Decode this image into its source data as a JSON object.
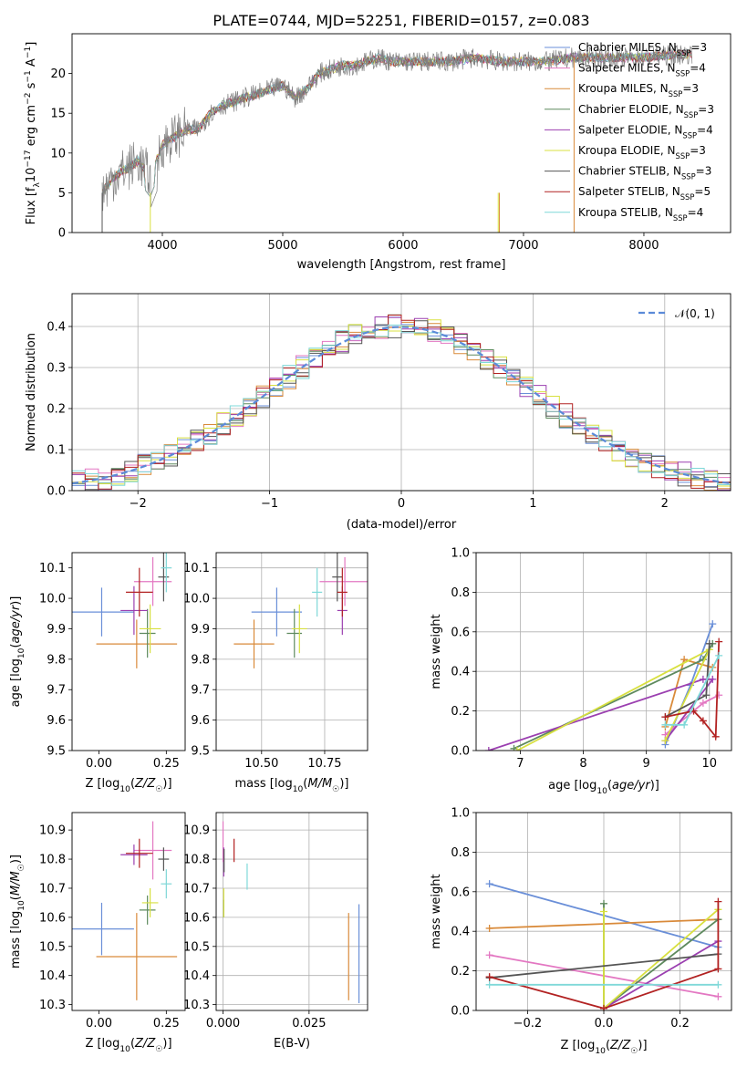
{
  "chart_data": [
    {
      "type": "line",
      "title": "PLATE=0744, MJD=52251, FIBERID=0157, z=0.083",
      "xlabel": "wavelength [Angstrom, rest frame]",
      "ylabel": "Flux [f_λ10^-17 erg cm^-2 s^-1 A^-1]",
      "xlim": [
        3250,
        8720
      ],
      "ylim": [
        0,
        25
      ],
      "xticks": [
        4000,
        5000,
        6000,
        7000,
        8000
      ],
      "yticks": [
        0,
        5,
        10,
        15,
        20
      ],
      "legend_position": "right",
      "spectrum": {
        "x": [
          3500,
          3600,
          3700,
          3800,
          3900,
          4000,
          4100,
          4200,
          4300,
          4400,
          4500,
          4600,
          4700,
          4800,
          4900,
          5000,
          5100,
          5200,
          5300,
          5400,
          5500,
          5600,
          5700,
          5800,
          5900,
          6000,
          6200,
          6400,
          6600,
          6800,
          7000,
          7200,
          7400,
          7600,
          7800,
          8000,
          8200,
          8400
        ],
        "y": [
          5,
          7,
          8,
          9,
          7,
          11,
          12,
          13,
          13,
          15,
          16,
          16.5,
          17,
          17.5,
          18,
          18.5,
          17,
          18,
          20,
          20.5,
          21,
          21,
          21.5,
          22,
          21.5,
          21.5,
          21.5,
          21.5,
          22,
          21.5,
          21.5,
          21.5,
          22,
          22,
          22,
          22,
          22.3,
          22.5
        ]
      },
      "series": [
        {
          "name": "Chabrier MILES, N_SSP=3",
          "color": "#6a8fd8"
        },
        {
          "name": "Salpeter MILES, N_SSP=4",
          "color": "#e377c2"
        },
        {
          "name": "Kroupa MILES, N_SSP=3",
          "color": "#d98a3a"
        },
        {
          "name": "Chabrier ELODIE, N_SSP=3",
          "color": "#5e8a5e"
        },
        {
          "name": "Salpeter ELODIE, N_SSP=4",
          "color": "#9b3fb0"
        },
        {
          "name": "Kroupa ELODIE, N_SSP=3",
          "color": "#d8e040"
        },
        {
          "name": "Chabrier STELIB, N_SSP=3",
          "color": "#555555"
        },
        {
          "name": "Salpeter STELIB, N_SSP=5",
          "color": "#b22222"
        },
        {
          "name": "Kroupa STELIB, N_SSP=4",
          "color": "#7fd8d8"
        }
      ]
    },
    {
      "type": "line",
      "title": "",
      "xlabel": "(data-model)/error",
      "ylabel": "Normed distribution",
      "xlim": [
        -2.5,
        2.5
      ],
      "ylim": [
        0,
        0.48
      ],
      "xticks": [
        -2,
        -1,
        0,
        1,
        2
      ],
      "yticks": [
        0.0,
        0.1,
        0.2,
        0.3,
        0.4
      ],
      "grid": true,
      "legend_position": "top-right",
      "legend": [
        "𝒩(0, 1)"
      ]
    },
    {
      "type": "scatter",
      "xlabel": "Z [log10(Z/Z☉)]",
      "ylabel": "age  [log10(age/yr)]",
      "xlim": [
        -0.1,
        0.32
      ],
      "ylim": [
        9.5,
        10.15
      ],
      "xticks": [
        0.0,
        0.25
      ],
      "yticks": [
        9.5,
        9.6,
        9.7,
        9.8,
        9.9,
        10.0,
        10.1
      ],
      "points": [
        {
          "x": 0.01,
          "y": 9.955,
          "xerr": 0.12,
          "yerr": 0.08,
          "c": "#6a8fd8"
        },
        {
          "x": 0.2,
          "y": 10.055,
          "xerr": 0.07,
          "yerr": 0.08,
          "c": "#e377c2"
        },
        {
          "x": 0.14,
          "y": 9.85,
          "xerr": 0.15,
          "yerr": 0.08,
          "c": "#d98a3a"
        },
        {
          "x": 0.18,
          "y": 9.885,
          "xerr": 0.03,
          "yerr": 0.08,
          "c": "#5e8a5e"
        },
        {
          "x": 0.13,
          "y": 9.96,
          "xerr": 0.05,
          "yerr": 0.08,
          "c": "#9b3fb0"
        },
        {
          "x": 0.19,
          "y": 9.9,
          "xerr": 0.04,
          "yerr": 0.08,
          "c": "#d8e040"
        },
        {
          "x": 0.24,
          "y": 10.07,
          "xerr": 0.02,
          "yerr": 0.08,
          "c": "#555555"
        },
        {
          "x": 0.15,
          "y": 10.02,
          "xerr": 0.05,
          "yerr": 0.08,
          "c": "#b22222"
        },
        {
          "x": 0.25,
          "y": 10.1,
          "xerr": 0.02,
          "yerr": 0.08,
          "c": "#7fd8d8"
        }
      ]
    },
    {
      "type": "scatter",
      "xlabel": "mass [log10(M/M☉)]",
      "ylabel": "",
      "xlim": [
        10.32,
        10.92
      ],
      "ylim": [
        9.5,
        10.15
      ],
      "xticks": [
        10.5,
        10.75
      ],
      "yticks": [
        9.5,
        9.6,
        9.7,
        9.8,
        9.9,
        10.0,
        10.1
      ],
      "points": [
        {
          "x": 10.56,
          "y": 9.955,
          "xerr": 0.1,
          "yerr": 0.08,
          "c": "#6a8fd8"
        },
        {
          "x": 10.83,
          "y": 10.055,
          "xerr": 0.1,
          "yerr": 0.08,
          "c": "#e377c2"
        },
        {
          "x": 10.47,
          "y": 9.85,
          "xerr": 0.08,
          "yerr": 0.08,
          "c": "#d98a3a"
        },
        {
          "x": 10.63,
          "y": 9.885,
          "xerr": 0.03,
          "yerr": 0.08,
          "c": "#5e8a5e"
        },
        {
          "x": 10.82,
          "y": 9.96,
          "xerr": 0.02,
          "yerr": 0.08,
          "c": "#9b3fb0"
        },
        {
          "x": 10.65,
          "y": 9.9,
          "xerr": 0.03,
          "yerr": 0.08,
          "c": "#d8e040"
        },
        {
          "x": 10.8,
          "y": 10.07,
          "xerr": 0.02,
          "yerr": 0.08,
          "c": "#555555"
        },
        {
          "x": 10.82,
          "y": 10.02,
          "xerr": 0.02,
          "yerr": 0.08,
          "c": "#b22222"
        },
        {
          "x": 10.72,
          "y": 10.02,
          "xerr": 0.02,
          "yerr": 0.08,
          "c": "#7fd8d8"
        }
      ]
    },
    {
      "type": "line",
      "xlabel": "age  [log10(age/yr)]",
      "ylabel": "mass weight",
      "xlim": [
        6.3,
        10.35
      ],
      "ylim": [
        0,
        1.0
      ],
      "xticks": [
        7,
        8,
        9,
        10
      ],
      "yticks": [
        0.0,
        0.2,
        0.4,
        0.6,
        0.8,
        1.0
      ],
      "grid": true,
      "series": [
        {
          "c": "#6a8fd8",
          "x": [
            9.3,
            9.7,
            10.05
          ],
          "y": [
            0.03,
            0.33,
            0.64
          ]
        },
        {
          "c": "#e377c2",
          "x": [
            9.3,
            9.9,
            10.15
          ],
          "y": [
            0.08,
            0.24,
            0.28
          ]
        },
        {
          "c": "#d98a3a",
          "x": [
            9.3,
            9.6,
            10.05
          ],
          "y": [
            0.12,
            0.46,
            0.42
          ]
        },
        {
          "c": "#5e8a5e",
          "x": [
            6.9,
            9.9,
            10.05
          ],
          "y": [
            0.01,
            0.46,
            0.54
          ]
        },
        {
          "c": "#9b3fb0",
          "x": [
            6.5,
            9.9,
            10.05,
            9.3
          ],
          "y": [
            0.0,
            0.36,
            0.36,
            0.05
          ]
        },
        {
          "c": "#d8e040",
          "x": [
            6.95,
            10.0,
            9.3
          ],
          "y": [
            0.0,
            0.51,
            0.05
          ]
        },
        {
          "c": "#555555",
          "x": [
            9.3,
            9.95,
            10.0
          ],
          "y": [
            0.17,
            0.28,
            0.54
          ]
        },
        {
          "c": "#b22222",
          "x": [
            9.3,
            9.75,
            9.9,
            10.1,
            10.15
          ],
          "y": [
            0.17,
            0.2,
            0.15,
            0.07,
            0.55
          ]
        },
        {
          "c": "#7fd8d8",
          "x": [
            9.3,
            9.6,
            10.15
          ],
          "y": [
            0.13,
            0.13,
            0.48
          ]
        }
      ]
    },
    {
      "type": "scatter",
      "xlabel": "Z [log10(Z/Z☉)]",
      "ylabel": "mass [log10(M/M☉)]",
      "xlim": [
        -0.1,
        0.32
      ],
      "ylim": [
        10.28,
        10.96
      ],
      "xticks": [
        0.0,
        0.25
      ],
      "yticks": [
        10.3,
        10.4,
        10.5,
        10.6,
        10.7,
        10.8,
        10.9
      ],
      "points": [
        {
          "x": 0.01,
          "y": 10.56,
          "xerr": 0.12,
          "yerr": 0.09,
          "c": "#6a8fd8"
        },
        {
          "x": 0.2,
          "y": 10.83,
          "xerr": 0.07,
          "yerr": 0.1,
          "c": "#e377c2"
        },
        {
          "x": 0.14,
          "y": 10.465,
          "xerr": 0.15,
          "yerr": 0.15,
          "c": "#d98a3a"
        },
        {
          "x": 0.18,
          "y": 10.625,
          "xerr": 0.03,
          "yerr": 0.05,
          "c": "#5e8a5e"
        },
        {
          "x": 0.13,
          "y": 10.815,
          "xerr": 0.05,
          "yerr": 0.035,
          "c": "#9b3fb0"
        },
        {
          "x": 0.19,
          "y": 10.65,
          "xerr": 0.03,
          "yerr": 0.05,
          "c": "#d8e040"
        },
        {
          "x": 0.24,
          "y": 10.8,
          "xerr": 0.02,
          "yerr": 0.04,
          "c": "#555555"
        },
        {
          "x": 0.15,
          "y": 10.82,
          "xerr": 0.05,
          "yerr": 0.05,
          "c": "#b22222"
        },
        {
          "x": 0.25,
          "y": 10.715,
          "xerr": 0.02,
          "yerr": 0.05,
          "c": "#7fd8d8"
        }
      ]
    },
    {
      "type": "scatter",
      "xlabel": "E(B-V)",
      "ylabel": "",
      "xlim": [
        -0.002,
        0.042
      ],
      "ylim": [
        10.28,
        10.96
      ],
      "xticks": [
        0.0,
        0.025
      ],
      "yticks": [
        10.3,
        10.4,
        10.5,
        10.6,
        10.7,
        10.8,
        10.9
      ],
      "points": [
        {
          "x": 0.0395,
          "y": 10.475,
          "yerr": 0.17,
          "c": "#6a8fd8"
        },
        {
          "x": 0.0,
          "y": 10.86,
          "yerr": 0.07,
          "c": "#e377c2"
        },
        {
          "x": 0.0365,
          "y": 10.465,
          "yerr": 0.15,
          "c": "#d98a3a"
        },
        {
          "x": 0.0002,
          "y": 10.63,
          "yerr": 0.03,
          "c": "#5e8a5e"
        },
        {
          "x": 0.0002,
          "y": 10.79,
          "yerr": 0.05,
          "c": "#9b3fb0"
        },
        {
          "x": 0.0002,
          "y": 10.65,
          "yerr": 0.05,
          "c": "#d8e040"
        },
        {
          "x": 0.0003,
          "y": 10.795,
          "yerr": 0.04,
          "c": "#555555"
        },
        {
          "x": 0.0032,
          "y": 10.83,
          "yerr": 0.04,
          "c": "#b22222"
        },
        {
          "x": 0.007,
          "y": 10.74,
          "yerr": 0.045,
          "c": "#7fd8d8"
        }
      ]
    },
    {
      "type": "line",
      "xlabel": "Z [log10(Z/Z☉)]",
      "ylabel": "mass weight",
      "xlim": [
        -0.335,
        0.335
      ],
      "ylim": [
        0,
        1.0
      ],
      "xticks": [
        -0.2,
        0.0,
        0.2
      ],
      "yticks": [
        0.0,
        0.2,
        0.4,
        0.6,
        0.8,
        1.0
      ],
      "grid": true,
      "series": [
        {
          "c": "#6a8fd8",
          "x": [
            -0.3,
            0.3
          ],
          "y": [
            0.64,
            0.32
          ]
        },
        {
          "c": "#e377c2",
          "x": [
            -0.3,
            0.3
          ],
          "y": [
            0.28,
            0.07
          ]
        },
        {
          "c": "#d98a3a",
          "x": [
            -0.3,
            0.3
          ],
          "y": [
            0.415,
            0.46
          ]
        },
        {
          "c": "#5e8a5e",
          "x": [
            0.0,
            0.0,
            0.3
          ],
          "y": [
            0.54,
            0.01,
            0.46
          ]
        },
        {
          "c": "#9b3fb0",
          "x": [
            0.0,
            0.3
          ],
          "y": [
            0.01,
            0.35
          ]
        },
        {
          "c": "#d8e040",
          "x": [
            0.0,
            0.0,
            0.3
          ],
          "y": [
            0.5,
            0.01,
            0.51
          ]
        },
        {
          "c": "#555555",
          "x": [
            -0.3,
            0.3
          ],
          "y": [
            0.165,
            0.285
          ]
        },
        {
          "c": "#b22222",
          "x": [
            -0.3,
            0.0,
            0.3,
            0.3
          ],
          "y": [
            0.17,
            0.01,
            0.21,
            0.55
          ]
        },
        {
          "c": "#7fd8d8",
          "x": [
            -0.3,
            0.3
          ],
          "y": [
            0.13,
            0.13
          ]
        }
      ]
    }
  ]
}
